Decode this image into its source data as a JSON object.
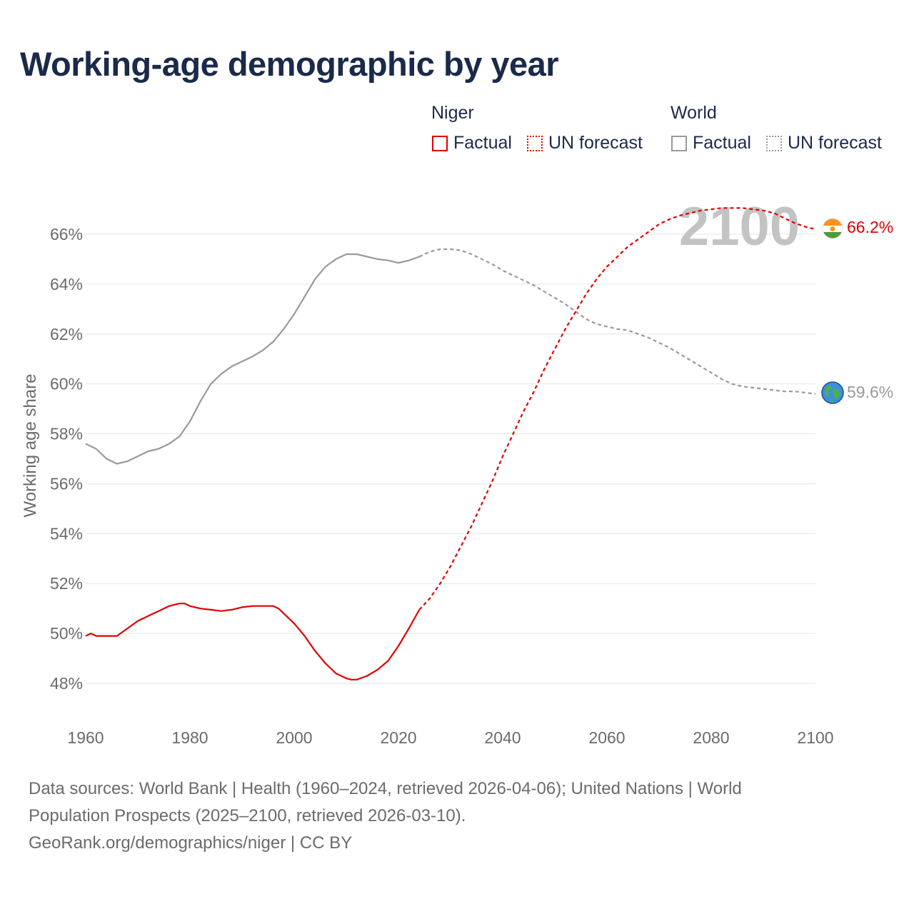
{
  "title": "Working-age demographic by year",
  "legend": {
    "groups": [
      {
        "name": "Niger",
        "color": "#e00000",
        "items": [
          {
            "label": "Factual",
            "style": "solid"
          },
          {
            "label": "UN forecast",
            "style": "dotted"
          }
        ]
      },
      {
        "name": "World",
        "color": "#9a9a9a",
        "items": [
          {
            "label": "Factual",
            "style": "solid"
          },
          {
            "label": "UN forecast",
            "style": "dotted"
          }
        ]
      }
    ]
  },
  "year_watermark": "2100",
  "end_labels": {
    "niger": "66.2%",
    "world": "59.6%"
  },
  "sources": {
    "line1": "Data sources: World Bank | Health (1960–2024, retrieved 2026-04-06); United Nations | World",
    "line2": "Population Prospects (2025–2100, retrieved 2026-03-10).",
    "line3": "GeoRank.org/demographics/niger | CC BY"
  },
  "chart_data": {
    "type": "line",
    "title": "Working-age demographic by year",
    "xlabel": "",
    "ylabel": "Working age share",
    "xlim": [
      1960,
      2100
    ],
    "ylim": [
      47,
      67
    ],
    "x_ticks": [
      1960,
      1980,
      2000,
      2020,
      2040,
      2060,
      2080,
      2100
    ],
    "y_ticks": [
      48,
      50,
      52,
      54,
      56,
      58,
      60,
      62,
      64,
      66
    ],
    "y_tick_labels": [
      "48%",
      "50%",
      "52%",
      "54%",
      "56%",
      "58%",
      "60%",
      "62%",
      "64%",
      "66%"
    ],
    "grid": true,
    "series": [
      {
        "name": "Niger",
        "color": "#e00000",
        "factual": {
          "x": [
            1960,
            1961,
            1962,
            1964,
            1966,
            1968,
            1970,
            1972,
            1974,
            1976,
            1978,
            1979,
            1980,
            1982,
            1984,
            1986,
            1988,
            1990,
            1992,
            1994,
            1996,
            1997,
            1998,
            2000,
            2002,
            2004,
            2006,
            2008,
            2010,
            2011,
            2012,
            2014,
            2016,
            2018,
            2020,
            2022,
            2024
          ],
          "values": [
            49.9,
            50.0,
            49.9,
            49.9,
            49.9,
            50.2,
            50.5,
            50.7,
            50.9,
            51.1,
            51.2,
            51.2,
            51.1,
            51.0,
            50.95,
            50.9,
            50.95,
            51.05,
            51.1,
            51.1,
            51.1,
            51.0,
            50.8,
            50.4,
            49.9,
            49.3,
            48.8,
            48.4,
            48.2,
            48.15,
            48.15,
            48.3,
            48.55,
            48.9,
            49.5,
            50.2,
            50.95
          ]
        },
        "forecast": {
          "x": [
            2024,
            2026,
            2028,
            2030,
            2032,
            2034,
            2036,
            2038,
            2040,
            2042,
            2044,
            2046,
            2048,
            2050,
            2052,
            2054,
            2056,
            2058,
            2060,
            2062,
            2064,
            2066,
            2068,
            2070,
            2072,
            2074,
            2076,
            2078,
            2080,
            2082,
            2084,
            2086,
            2088,
            2090,
            2092,
            2094,
            2096,
            2098,
            2100
          ],
          "values": [
            50.95,
            51.4,
            52.0,
            52.7,
            53.5,
            54.3,
            55.2,
            56.1,
            57.1,
            58.0,
            58.9,
            59.7,
            60.6,
            61.4,
            62.2,
            62.9,
            63.6,
            64.2,
            64.7,
            65.1,
            65.5,
            65.8,
            66.1,
            66.4,
            66.6,
            66.75,
            66.85,
            66.95,
            67.0,
            67.05,
            67.05,
            67.05,
            67.0,
            66.95,
            66.85,
            66.65,
            66.45,
            66.3,
            66.2
          ]
        }
      },
      {
        "name": "World",
        "color": "#9a9a9a",
        "factual": {
          "x": [
            1960,
            1962,
            1964,
            1966,
            1968,
            1970,
            1972,
            1974,
            1976,
            1978,
            1980,
            1982,
            1984,
            1986,
            1988,
            1990,
            1992,
            1994,
            1996,
            1998,
            2000,
            2002,
            2004,
            2006,
            2008,
            2010,
            2012,
            2014,
            2016,
            2018,
            2020,
            2022,
            2024
          ],
          "values": [
            57.6,
            57.4,
            57.0,
            56.8,
            56.9,
            57.1,
            57.3,
            57.4,
            57.6,
            57.9,
            58.5,
            59.3,
            60.0,
            60.4,
            60.7,
            60.9,
            61.1,
            61.35,
            61.7,
            62.2,
            62.8,
            63.5,
            64.2,
            64.7,
            65.0,
            65.2,
            65.2,
            65.1,
            65.0,
            64.95,
            64.85,
            64.95,
            65.1
          ]
        },
        "forecast": {
          "x": [
            2024,
            2026,
            2028,
            2030,
            2032,
            2034,
            2036,
            2038,
            2040,
            2042,
            2044,
            2046,
            2048,
            2050,
            2052,
            2054,
            2056,
            2058,
            2060,
            2062,
            2064,
            2066,
            2068,
            2070,
            2072,
            2074,
            2076,
            2078,
            2080,
            2082,
            2084,
            2086,
            2088,
            2090,
            2092,
            2094,
            2096,
            2098,
            2100
          ],
          "values": [
            65.1,
            65.3,
            65.4,
            65.4,
            65.35,
            65.2,
            65.0,
            64.8,
            64.55,
            64.35,
            64.15,
            63.95,
            63.7,
            63.45,
            63.2,
            62.9,
            62.6,
            62.4,
            62.3,
            62.2,
            62.15,
            62.0,
            61.85,
            61.65,
            61.45,
            61.2,
            60.95,
            60.7,
            60.45,
            60.2,
            60.0,
            59.9,
            59.85,
            59.8,
            59.75,
            59.7,
            59.7,
            59.65,
            59.6
          ]
        }
      }
    ]
  }
}
